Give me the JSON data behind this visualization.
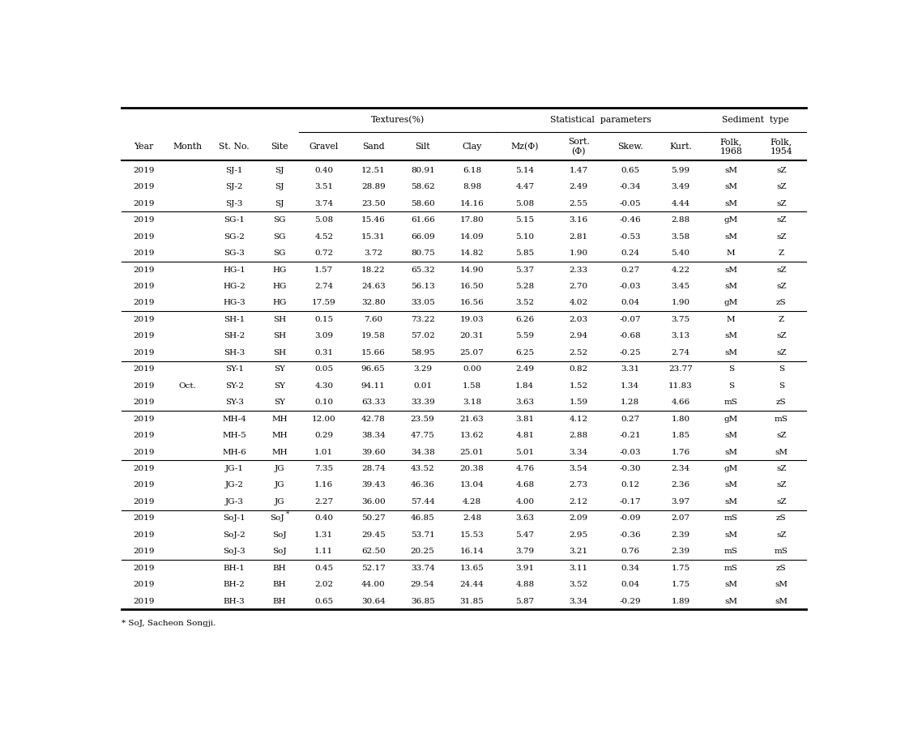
{
  "footnote": "* SoJ, Sacheon Songji.",
  "rows": [
    [
      "2019",
      "",
      "SJ-1",
      "SJ",
      "0.40",
      "12.51",
      "80.91",
      "6.18",
      "5.14",
      "1.47",
      "0.65",
      "5.99",
      "sM",
      "sZ"
    ],
    [
      "2019",
      "",
      "SJ-2",
      "SJ",
      "3.51",
      "28.89",
      "58.62",
      "8.98",
      "4.47",
      "2.49",
      "-0.34",
      "3.49",
      "sM",
      "sZ"
    ],
    [
      "2019",
      "",
      "SJ-3",
      "SJ",
      "3.74",
      "23.50",
      "58.60",
      "14.16",
      "5.08",
      "2.55",
      "-0.05",
      "4.44",
      "sM",
      "sZ"
    ],
    [
      "2019",
      "",
      "SG-1",
      "SG",
      "5.08",
      "15.46",
      "61.66",
      "17.80",
      "5.15",
      "3.16",
      "-0.46",
      "2.88",
      "gM",
      "sZ"
    ],
    [
      "2019",
      "",
      "SG-2",
      "SG",
      "4.52",
      "15.31",
      "66.09",
      "14.09",
      "5.10",
      "2.81",
      "-0.53",
      "3.58",
      "sM",
      "sZ"
    ],
    [
      "2019",
      "",
      "SG-3",
      "SG",
      "0.72",
      "3.72",
      "80.75",
      "14.82",
      "5.85",
      "1.90",
      "0.24",
      "5.40",
      "M",
      "Z"
    ],
    [
      "2019",
      "",
      "HG-1",
      "HG",
      "1.57",
      "18.22",
      "65.32",
      "14.90",
      "5.37",
      "2.33",
      "0.27",
      "4.22",
      "sM",
      "sZ"
    ],
    [
      "2019",
      "",
      "HG-2",
      "HG",
      "2.74",
      "24.63",
      "56.13",
      "16.50",
      "5.28",
      "2.70",
      "-0.03",
      "3.45",
      "sM",
      "sZ"
    ],
    [
      "2019",
      "",
      "HG-3",
      "HG",
      "17.59",
      "32.80",
      "33.05",
      "16.56",
      "3.52",
      "4.02",
      "0.04",
      "1.90",
      "gM",
      "zS"
    ],
    [
      "2019",
      "",
      "SH-1",
      "SH",
      "0.15",
      "7.60",
      "73.22",
      "19.03",
      "6.26",
      "2.03",
      "-0.07",
      "3.75",
      "M",
      "Z"
    ],
    [
      "2019",
      "",
      "SH-2",
      "SH",
      "3.09",
      "19.58",
      "57.02",
      "20.31",
      "5.59",
      "2.94",
      "-0.68",
      "3.13",
      "sM",
      "sZ"
    ],
    [
      "2019",
      "",
      "SH-3",
      "SH",
      "0.31",
      "15.66",
      "58.95",
      "25.07",
      "6.25",
      "2.52",
      "-0.25",
      "2.74",
      "sM",
      "sZ"
    ],
    [
      "2019",
      "",
      "SY-1",
      "SY",
      "0.05",
      "96.65",
      "3.29",
      "0.00",
      "2.49",
      "0.82",
      "3.31",
      "23.77",
      "S",
      "S"
    ],
    [
      "2019",
      "Oct.",
      "SY-2",
      "SY",
      "4.30",
      "94.11",
      "0.01",
      "1.58",
      "1.84",
      "1.52",
      "1.34",
      "11.83",
      "S",
      "S"
    ],
    [
      "2019",
      "",
      "SY-3",
      "SY",
      "0.10",
      "63.33",
      "33.39",
      "3.18",
      "3.63",
      "1.59",
      "1.28",
      "4.66",
      "mS",
      "zS"
    ],
    [
      "2019",
      "",
      "MH-4",
      "MH",
      "12.00",
      "42.78",
      "23.59",
      "21.63",
      "3.81",
      "4.12",
      "0.27",
      "1.80",
      "gM",
      "mS"
    ],
    [
      "2019",
      "",
      "MH-5",
      "MH",
      "0.29",
      "38.34",
      "47.75",
      "13.62",
      "4.81",
      "2.88",
      "-0.21",
      "1.85",
      "sM",
      "sZ"
    ],
    [
      "2019",
      "",
      "MH-6",
      "MH",
      "1.01",
      "39.60",
      "34.38",
      "25.01",
      "5.01",
      "3.34",
      "-0.03",
      "1.76",
      "sM",
      "sM"
    ],
    [
      "2019",
      "",
      "JG-1",
      "JG",
      "7.35",
      "28.74",
      "43.52",
      "20.38",
      "4.76",
      "3.54",
      "-0.30",
      "2.34",
      "gM",
      "sZ"
    ],
    [
      "2019",
      "",
      "JG-2",
      "JG",
      "1.16",
      "39.43",
      "46.36",
      "13.04",
      "4.68",
      "2.73",
      "0.12",
      "2.36",
      "sM",
      "sZ"
    ],
    [
      "2019",
      "",
      "JG-3",
      "JG",
      "2.27",
      "36.00",
      "57.44",
      "4.28",
      "4.00",
      "2.12",
      "-0.17",
      "3.97",
      "sM",
      "sZ"
    ],
    [
      "2019",
      "",
      "SoJ-1",
      "SoJ*",
      "0.40",
      "50.27",
      "46.85",
      "2.48",
      "3.63",
      "2.09",
      "-0.09",
      "2.07",
      "mS",
      "zS"
    ],
    [
      "2019",
      "",
      "SoJ-2",
      "SoJ",
      "1.31",
      "29.45",
      "53.71",
      "15.53",
      "5.47",
      "2.95",
      "-0.36",
      "2.39",
      "sM",
      "sZ"
    ],
    [
      "2019",
      "",
      "SoJ-3",
      "SoJ",
      "1.11",
      "62.50",
      "20.25",
      "16.14",
      "3.79",
      "3.21",
      "0.76",
      "2.39",
      "mS",
      "mS"
    ],
    [
      "2019",
      "",
      "BH-1",
      "BH",
      "0.45",
      "52.17",
      "33.74",
      "13.65",
      "3.91",
      "3.11",
      "0.34",
      "1.75",
      "mS",
      "zS"
    ],
    [
      "2019",
      "",
      "BH-2",
      "BH",
      "2.02",
      "44.00",
      "29.54",
      "24.44",
      "4.88",
      "3.52",
      "0.04",
      "1.75",
      "sM",
      "sM"
    ],
    [
      "2019",
      "",
      "BH-3",
      "BH",
      "0.65",
      "30.64",
      "36.85",
      "31.85",
      "5.87",
      "3.34",
      "-0.29",
      "1.89",
      "sM",
      "sM"
    ]
  ],
  "group_separators": [
    3,
    6,
    9,
    12,
    15,
    18,
    21,
    24
  ],
  "col_props": [
    0.065,
    0.062,
    0.075,
    0.057,
    0.072,
    0.072,
    0.072,
    0.072,
    0.082,
    0.075,
    0.075,
    0.072,
    0.075,
    0.072
  ],
  "font_size": 7.5,
  "header_font_size": 7.8
}
